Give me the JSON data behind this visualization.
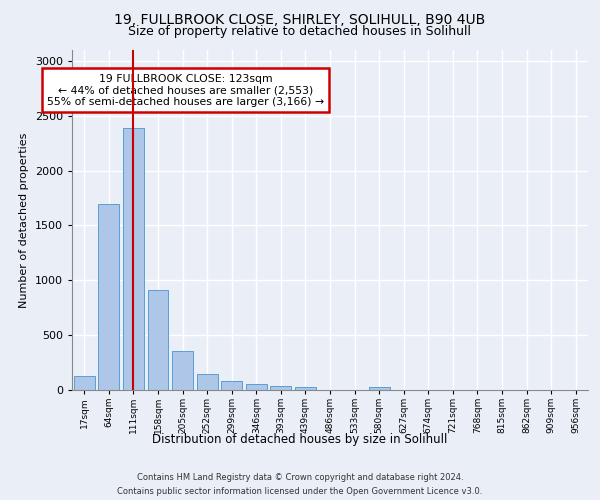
{
  "title1": "19, FULLBROOK CLOSE, SHIRLEY, SOLIHULL, B90 4UB",
  "title2": "Size of property relative to detached houses in Solihull",
  "xlabel": "Distribution of detached houses by size in Solihull",
  "ylabel": "Number of detached properties",
  "footer1": "Contains HM Land Registry data © Crown copyright and database right 2024.",
  "footer2": "Contains public sector information licensed under the Open Government Licence v3.0.",
  "bin_labels": [
    "17sqm",
    "64sqm",
    "111sqm",
    "158sqm",
    "205sqm",
    "252sqm",
    "299sqm",
    "346sqm",
    "393sqm",
    "439sqm",
    "486sqm",
    "533sqm",
    "580sqm",
    "627sqm",
    "674sqm",
    "721sqm",
    "768sqm",
    "815sqm",
    "862sqm",
    "909sqm",
    "956sqm"
  ],
  "bar_values": [
    130,
    1700,
    2390,
    910,
    355,
    145,
    85,
    55,
    40,
    30,
    0,
    0,
    30,
    0,
    0,
    0,
    0,
    0,
    0,
    0,
    0
  ],
  "bar_color": "#aec6e8",
  "bar_edge_color": "#5a9fd4",
  "vline_color": "#cc0000",
  "annotation_text": "19 FULLBROOK CLOSE: 123sqm\n← 44% of detached houses are smaller (2,553)\n55% of semi-detached houses are larger (3,166) →",
  "annotation_box_color": "#ffffff",
  "annotation_box_edge": "#cc0000",
  "ylim": [
    0,
    3100
  ],
  "yticks": [
    0,
    500,
    1000,
    1500,
    2000,
    2500,
    3000
  ],
  "bg_color": "#eaeff7",
  "plot_bg_color": "#eaeff7",
  "title1_fontsize": 10,
  "title2_fontsize": 9,
  "grid_color": "#ffffff"
}
